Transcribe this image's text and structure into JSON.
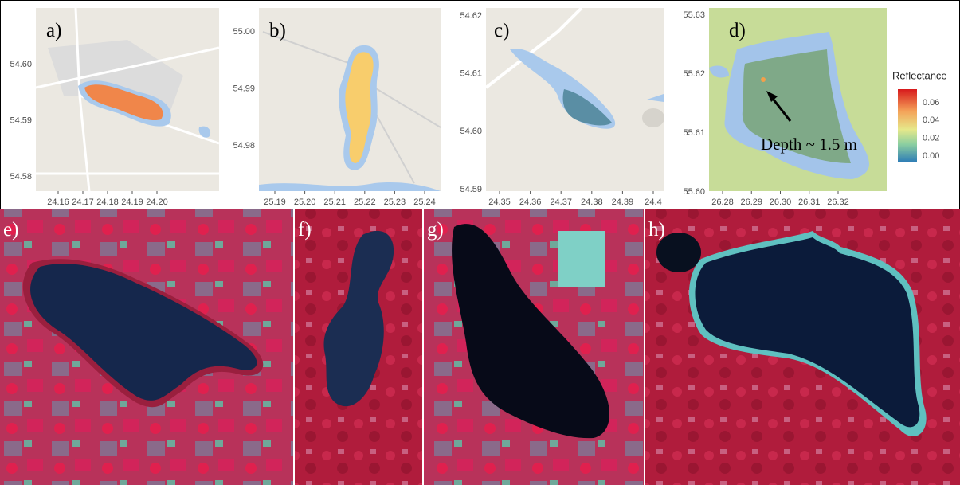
{
  "map_panels": [
    {
      "label": "a)",
      "yticks": [
        "54.60",
        "54.59",
        "54.58"
      ],
      "xticks": [
        "24.16",
        "24.17",
        "24.18",
        "24.19",
        "24.20"
      ]
    },
    {
      "label": "b)",
      "yticks": [
        "55.00",
        "54.99",
        "54.98"
      ],
      "xticks": [
        "25.19",
        "25.20",
        "25.21",
        "25.22",
        "25.23",
        "25.24"
      ]
    },
    {
      "label": "c)",
      "yticks": [
        "54.62",
        "54.61",
        "54.60",
        "54.59"
      ],
      "xticks": [
        "24.35",
        "24.36",
        "24.37",
        "24.38",
        "24.39",
        "24.4"
      ]
    },
    {
      "label": "d)",
      "yticks": [
        "55.63",
        "55.62",
        "55.61",
        "55.60"
      ],
      "xticks": [
        "26.28",
        "26.29",
        "26.30",
        "26.31",
        "26.32"
      ]
    }
  ],
  "legend": {
    "title": "Reflectance",
    "ticks": [
      "0.06",
      "0.04",
      "0.02",
      "0.00"
    ]
  },
  "annotation": "Depth ~ 1.5 m",
  "image_panels": [
    {
      "label": "e)"
    },
    {
      "label": "f)"
    },
    {
      "label": "g)"
    },
    {
      "label": "h)"
    }
  ]
}
